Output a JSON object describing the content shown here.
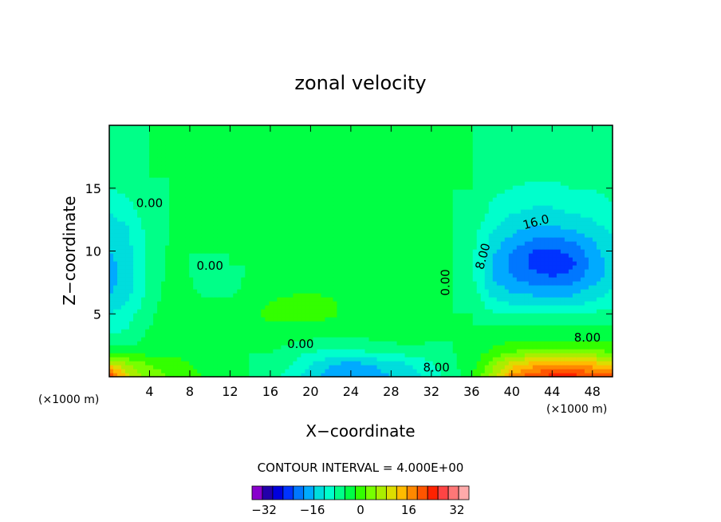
{
  "chart_data": {
    "type": "heatmap",
    "title": "zonal velocity",
    "xlabel": "X−coordinate",
    "ylabel": "Z−coordinate",
    "x_unit_left": "(×1000 m)",
    "x_unit_right": "(×1000 m)",
    "xlim": [
      0,
      50
    ],
    "ylim": [
      0,
      20
    ],
    "x_ticks": [
      4,
      8,
      12,
      16,
      20,
      24,
      28,
      32,
      36,
      40,
      44,
      48
    ],
    "y_ticks": [
      5,
      10,
      15
    ],
    "contour_interval_text": "CONTOUR INTERVAL = 4.000E+00",
    "contour_labels": [
      "0.00",
      "0.00",
      "0.00",
      "0.00",
      "8.00",
      "16.0",
      "8.00",
      "8.00"
    ],
    "colorbar": {
      "min": -36,
      "max": 36,
      "step": 4,
      "tick_values": [
        -32,
        -16,
        0,
        16,
        32
      ],
      "tick_labels": [
        "−32",
        "−16",
        "0",
        "16",
        "32"
      ],
      "colors": [
        "#8800cc",
        "#2200aa",
        "#0000dd",
        "#0033ff",
        "#0077ff",
        "#00aaff",
        "#00dddd",
        "#00ffcc",
        "#00ff88",
        "#00ff44",
        "#33ff00",
        "#77ff00",
        "#aaee00",
        "#dddd00",
        "#ffbb00",
        "#ff8800",
        "#ff5500",
        "#ff2200",
        "#ff4444",
        "#ff7777",
        "#ffaaaa"
      ]
    },
    "values": [
      [
        34,
        16,
        10,
        8,
        6,
        3,
        2,
        0,
        -3,
        -6,
        -10,
        -14,
        -16,
        -14,
        -12,
        -10,
        -6,
        -2,
        3,
        14,
        26,
        32,
        34,
        34,
        32,
        30
      ],
      [
        18,
        12,
        8,
        6,
        4,
        2,
        1,
        0,
        -1,
        -4,
        -8,
        -12,
        -14,
        -12,
        -10,
        -8,
        -5,
        -1,
        2,
        10,
        18,
        22,
        24,
        24,
        22,
        20
      ],
      [
        4,
        3,
        2,
        3,
        3,
        2,
        1,
        0,
        0,
        -2,
        -4,
        -5,
        -5,
        -4,
        -3,
        -2,
        -1,
        0,
        1,
        5,
        8,
        10,
        10,
        10,
        9,
        8
      ],
      [
        -2,
        -3,
        2,
        3,
        3,
        4,
        0,
        1,
        2,
        1,
        0,
        -1,
        -1,
        0,
        1,
        2,
        0,
        0,
        1,
        2,
        3,
        4,
        4,
        4,
        3,
        3
      ],
      [
        -6,
        -4,
        0,
        3,
        3,
        3,
        2,
        3,
        3,
        3,
        2,
        2,
        2,
        1,
        2,
        3,
        1,
        0,
        0,
        0,
        0,
        1,
        1,
        1,
        0,
        0
      ],
      [
        -8,
        -5,
        -1,
        3,
        2,
        2,
        2,
        3,
        5,
        6,
        6,
        5,
        2,
        1,
        1,
        1,
        0,
        0,
        0,
        -3,
        -4,
        -4,
        -4,
        -4,
        -3,
        -2
      ],
      [
        -11,
        -8,
        -2,
        2,
        2,
        1,
        1,
        3,
        4,
        6,
        6,
        5,
        2,
        1,
        0,
        0,
        0,
        0,
        -1,
        -7,
        -9,
        -10,
        -10,
        -10,
        -8,
        -6
      ],
      [
        -13,
        -9,
        -2,
        2,
        1,
        -3,
        -2,
        2,
        2,
        2,
        3,
        2,
        1,
        1,
        0,
        0,
        0,
        0,
        -2,
        -10,
        -13,
        -14,
        -15,
        -14,
        -11,
        -8
      ],
      [
        -14,
        -10,
        -3,
        1,
        0,
        -2,
        -2,
        1,
        1,
        2,
        2,
        1,
        1,
        1,
        0,
        0,
        0,
        0,
        -3,
        -12,
        -16,
        -19,
        -20,
        -19,
        -14,
        -10
      ],
      [
        -13,
        -10,
        -3,
        1,
        0,
        -1,
        0,
        0,
        2,
        1,
        1,
        1,
        0,
        0,
        0,
        0,
        0,
        0,
        -3,
        -12,
        -17,
        -21,
        -22,
        -21,
        -15,
        -10
      ],
      [
        -12,
        -9,
        -3,
        1,
        0,
        0,
        0,
        0,
        1,
        2,
        2,
        1,
        0,
        0,
        0,
        0,
        0,
        0,
        -3,
        -11,
        -16,
        -20,
        -21,
        -19,
        -14,
        -9
      ],
      [
        -11,
        -8,
        -3,
        0,
        0,
        0,
        0,
        0,
        2,
        3,
        3,
        2,
        1,
        0,
        0,
        0,
        0,
        0,
        -2,
        -9,
        -13,
        -16,
        -17,
        -15,
        -12,
        -8
      ],
      [
        -10,
        -8,
        -2,
        0,
        0,
        0,
        0,
        0,
        1,
        1,
        1,
        1,
        0,
        0,
        0,
        0,
        0,
        0,
        -2,
        -7,
        -10,
        -12,
        -12,
        -11,
        -9,
        -7
      ],
      [
        -8,
        -6,
        -1,
        0,
        0,
        0,
        0,
        0,
        0,
        0,
        0,
        0,
        0,
        0,
        0,
        0,
        0,
        0,
        -1,
        -5,
        -8,
        -9,
        -9,
        -8,
        -7,
        -5
      ],
      [
        -6,
        -4,
        -1,
        0,
        0,
        0,
        0,
        0,
        0,
        0,
        0,
        0,
        0,
        0,
        0,
        0,
        0,
        0,
        -1,
        -4,
        -6,
        -7,
        -7,
        -6,
        -5,
        -4
      ],
      [
        -4,
        -3,
        -1,
        0,
        0,
        0,
        0,
        0,
        0,
        0,
        0,
        0,
        0,
        1,
        2,
        1,
        0,
        0,
        0,
        -3,
        -4,
        -5,
        -5,
        -4,
        -4,
        -3
      ],
      [
        -3,
        -2,
        0,
        0,
        0,
        0,
        0,
        0,
        0,
        0,
        0,
        0,
        0,
        1,
        2,
        1,
        0,
        0,
        0,
        -2,
        -3,
        -3,
        -3,
        -3,
        -2,
        -2
      ],
      [
        -2,
        -1,
        0,
        0,
        0,
        0,
        0,
        0,
        0,
        0,
        0,
        0,
        0,
        1,
        2,
        1,
        0,
        0,
        0,
        -1,
        -2,
        -2,
        -2,
        -2,
        -1,
        -1
      ],
      [
        -1,
        -1,
        0,
        0,
        0,
        0,
        0,
        0,
        0,
        0,
        0,
        0,
        0,
        1,
        2,
        1,
        0,
        0,
        0,
        -1,
        -1,
        -1,
        -1,
        -1,
        -1,
        -1
      ],
      [
        -1,
        -1,
        0,
        0,
        0,
        0,
        0,
        0,
        0,
        0,
        0,
        0,
        0,
        1,
        1,
        1,
        0,
        0,
        0,
        -1,
        -1,
        -1,
        -1,
        -1,
        -1,
        -1
      ],
      [
        0,
        0,
        0,
        0,
        0,
        0,
        0,
        0,
        0,
        0,
        0,
        0,
        0,
        1,
        1,
        0,
        0,
        0,
        0,
        0,
        -1,
        -1,
        -1,
        -1,
        0,
        0
      ]
    ]
  }
}
